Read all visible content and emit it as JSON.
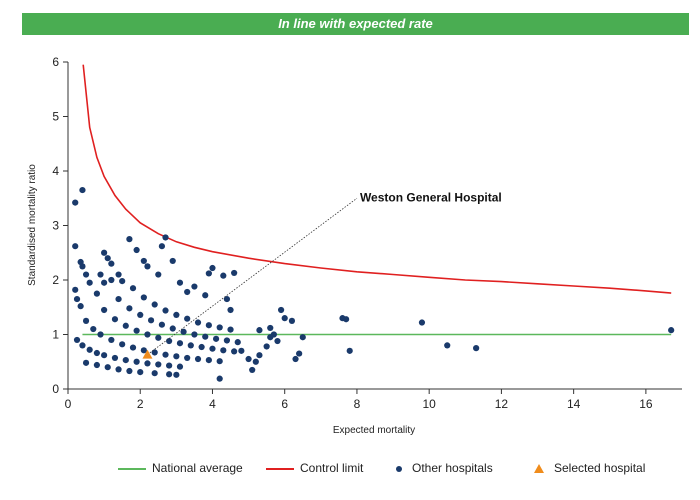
{
  "banner": {
    "text": "In line with expected rate"
  },
  "chart_data": {
    "type": "scatter",
    "title": "",
    "xlabel": "Expected mortality",
    "ylabel": "Standardised mortality ratio",
    "xlim": [
      0,
      17
    ],
    "ylim": [
      0,
      6
    ],
    "xticks": [
      0,
      2,
      4,
      6,
      8,
      10,
      12,
      14,
      16
    ],
    "yticks": [
      0,
      1,
      2,
      3,
      4,
      5,
      6
    ],
    "grid": false,
    "legend_position": "bottom",
    "national_average": {
      "name": "National average",
      "value": 1,
      "x_range": [
        0.4,
        16.7
      ],
      "color": "#5cb85c"
    },
    "control_limit": {
      "name": "Control limit",
      "color": "#e02020",
      "points": [
        [
          0.42,
          5.95
        ],
        [
          0.6,
          4.8
        ],
        [
          0.8,
          4.25
        ],
        [
          1.0,
          3.9
        ],
        [
          1.3,
          3.55
        ],
        [
          1.6,
          3.3
        ],
        [
          2.0,
          3.05
        ],
        [
          2.5,
          2.85
        ],
        [
          3.0,
          2.7
        ],
        [
          3.5,
          2.6
        ],
        [
          4.0,
          2.52
        ],
        [
          5.0,
          2.4
        ],
        [
          6.0,
          2.3
        ],
        [
          7.0,
          2.22
        ],
        [
          8.0,
          2.15
        ],
        [
          9.0,
          2.1
        ],
        [
          10.0,
          2.05
        ],
        [
          11.0,
          2.0
        ],
        [
          12.0,
          1.97
        ],
        [
          13.0,
          1.93
        ],
        [
          14.0,
          1.89
        ],
        [
          15.0,
          1.85
        ],
        [
          16.0,
          1.8
        ],
        [
          16.7,
          1.76
        ]
      ]
    },
    "other_hospitals": {
      "name": "Other hospitals",
      "color": "#1a3a6b",
      "points": [
        [
          0.4,
          3.65
        ],
        [
          0.2,
          3.42
        ],
        [
          0.2,
          2.62
        ],
        [
          0.35,
          2.33
        ],
        [
          0.4,
          2.25
        ],
        [
          0.5,
          2.1
        ],
        [
          0.6,
          1.95
        ],
        [
          0.8,
          1.75
        ],
        [
          0.2,
          1.82
        ],
        [
          0.25,
          1.65
        ],
        [
          0.35,
          1.52
        ],
        [
          1.0,
          2.5
        ],
        [
          1.1,
          2.4
        ],
        [
          1.2,
          2.3
        ],
        [
          0.9,
          2.1
        ],
        [
          1.0,
          1.95
        ],
        [
          1.2,
          2.0
        ],
        [
          1.4,
          2.1
        ],
        [
          1.5,
          1.98
        ],
        [
          1.7,
          2.75
        ],
        [
          1.9,
          2.55
        ],
        [
          2.1,
          2.35
        ],
        [
          2.2,
          2.25
        ],
        [
          2.6,
          2.62
        ],
        [
          2.7,
          2.78
        ],
        [
          2.9,
          2.35
        ],
        [
          2.5,
          2.1
        ],
        [
          3.1,
          1.95
        ],
        [
          3.3,
          1.78
        ],
        [
          3.5,
          1.88
        ],
        [
          3.8,
          1.72
        ],
        [
          3.9,
          2.12
        ],
        [
          4.0,
          2.22
        ],
        [
          4.3,
          2.08
        ],
        [
          4.6,
          2.13
        ],
        [
          4.4,
          1.65
        ],
        [
          4.5,
          1.45
        ],
        [
          0.5,
          0.48
        ],
        [
          0.8,
          0.44
        ],
        [
          1.1,
          0.4
        ],
        [
          1.4,
          0.36
        ],
        [
          1.7,
          0.33
        ],
        [
          2.0,
          0.31
        ],
        [
          2.4,
          0.29
        ],
        [
          2.8,
          0.27
        ],
        [
          3.0,
          0.26
        ],
        [
          4.2,
          0.19
        ],
        [
          0.25,
          0.9
        ],
        [
          0.4,
          0.8
        ],
        [
          0.6,
          0.72
        ],
        [
          0.8,
          0.66
        ],
        [
          1.0,
          0.62
        ],
        [
          1.3,
          0.57
        ],
        [
          1.6,
          0.53
        ],
        [
          1.9,
          0.5
        ],
        [
          2.2,
          0.47
        ],
        [
          2.5,
          0.45
        ],
        [
          2.8,
          0.43
        ],
        [
          3.1,
          0.41
        ],
        [
          0.5,
          1.25
        ],
        [
          0.7,
          1.1
        ],
        [
          0.9,
          1.0
        ],
        [
          1.2,
          0.9
        ],
        [
          1.5,
          0.82
        ],
        [
          1.8,
          0.76
        ],
        [
          2.1,
          0.71
        ],
        [
          2.4,
          0.67
        ],
        [
          2.7,
          0.63
        ],
        [
          3.0,
          0.6
        ],
        [
          3.3,
          0.57
        ],
        [
          3.6,
          0.55
        ],
        [
          3.9,
          0.53
        ],
        [
          4.2,
          0.51
        ],
        [
          1.0,
          1.45
        ],
        [
          1.3,
          1.28
        ],
        [
          1.6,
          1.16
        ],
        [
          1.9,
          1.07
        ],
        [
          2.2,
          1.0
        ],
        [
          2.5,
          0.94
        ],
        [
          2.8,
          0.88
        ],
        [
          3.1,
          0.84
        ],
        [
          3.4,
          0.8
        ],
        [
          3.7,
          0.77
        ],
        [
          4.0,
          0.74
        ],
        [
          4.3,
          0.71
        ],
        [
          4.6,
          0.69
        ],
        [
          1.4,
          1.65
        ],
        [
          1.7,
          1.48
        ],
        [
          2.0,
          1.36
        ],
        [
          2.3,
          1.26
        ],
        [
          2.6,
          1.18
        ],
        [
          2.9,
          1.11
        ],
        [
          3.2,
          1.05
        ],
        [
          3.5,
          1.0
        ],
        [
          3.8,
          0.96
        ],
        [
          4.1,
          0.92
        ],
        [
          4.4,
          0.89
        ],
        [
          4.7,
          0.86
        ],
        [
          1.8,
          1.85
        ],
        [
          2.1,
          1.68
        ],
        [
          2.4,
          1.55
        ],
        [
          2.7,
          1.44
        ],
        [
          3.0,
          1.36
        ],
        [
          3.3,
          1.29
        ],
        [
          3.6,
          1.22
        ],
        [
          3.9,
          1.17
        ],
        [
          4.2,
          1.13
        ],
        [
          4.5,
          1.09
        ],
        [
          4.8,
          0.7
        ],
        [
          5.0,
          0.55
        ],
        [
          5.2,
          0.5
        ],
        [
          5.1,
          0.35
        ],
        [
          5.3,
          0.62
        ],
        [
          5.5,
          0.78
        ],
        [
          5.6,
          0.95
        ],
        [
          5.7,
          1.0
        ],
        [
          5.8,
          0.88
        ],
        [
          5.9,
          1.45
        ],
        [
          6.0,
          1.3
        ],
        [
          6.2,
          1.25
        ],
        [
          6.3,
          0.55
        ],
        [
          6.4,
          0.65
        ],
        [
          6.5,
          0.95
        ],
        [
          5.3,
          1.08
        ],
        [
          5.6,
          1.12
        ],
        [
          7.6,
          1.3
        ],
        [
          7.7,
          1.28
        ],
        [
          7.8,
          0.7
        ],
        [
          9.8,
          1.22
        ],
        [
          10.5,
          0.8
        ],
        [
          11.3,
          0.75
        ],
        [
          16.7,
          1.08
        ]
      ]
    },
    "selected_hospital": {
      "name": "Selected hospital",
      "label": "Weston General Hospital",
      "x": 2.2,
      "y": 0.63,
      "color": "#f08c1c",
      "label_anchor": [
        8.0,
        3.5
      ]
    }
  }
}
